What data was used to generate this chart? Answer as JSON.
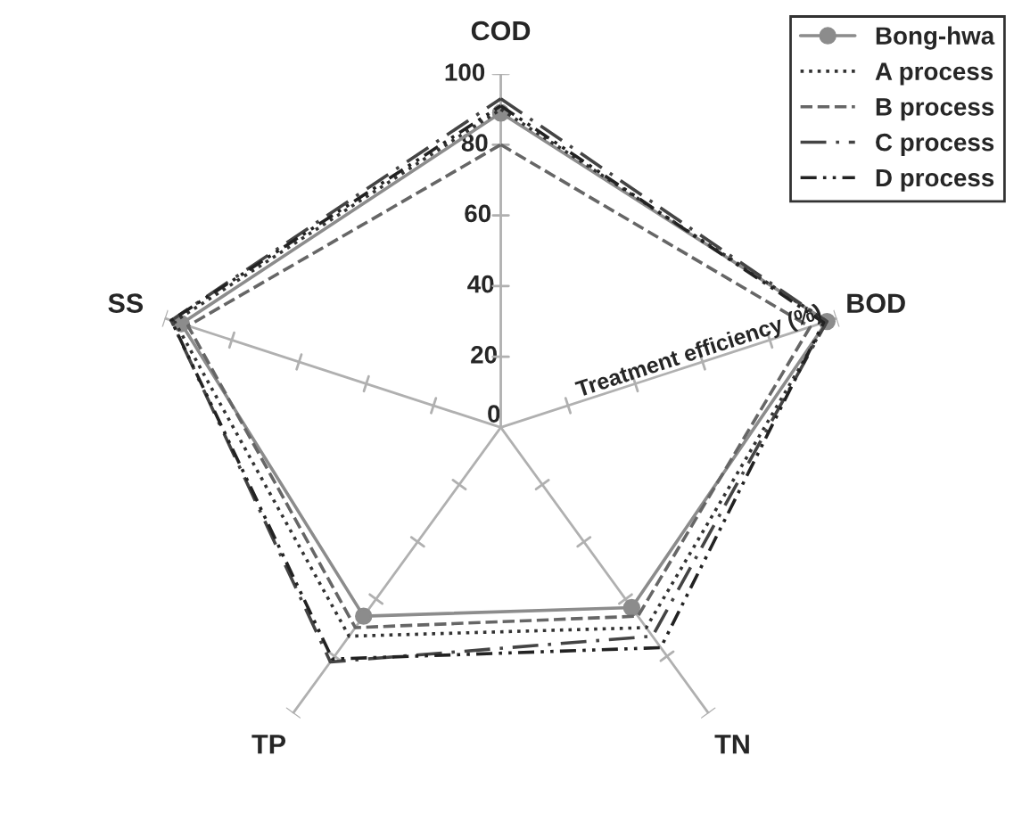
{
  "chart_data": {
    "type": "radar",
    "ylabel": "Treatment efficiency (%)",
    "categories": [
      "COD",
      "BOD",
      "TN",
      "TP",
      "SS"
    ],
    "ylim": [
      0,
      100
    ],
    "yticks": [
      0,
      20,
      40,
      60,
      80,
      100
    ],
    "grid": false,
    "legend": "top right",
    "series": [
      {
        "name": "Bong-hwa",
        "color": "#8c8c8c",
        "values": [
          89,
          97,
          63,
          66,
          95
        ],
        "line_style": "solid",
        "marker": "circle"
      },
      {
        "name": "A process",
        "color": "#333333",
        "values": [
          90,
          97,
          70,
          73,
          97
        ],
        "line_style": "dotted",
        "marker": "none"
      },
      {
        "name": "B process",
        "color": "#666666",
        "values": [
          80,
          92,
          66,
          70,
          93
        ],
        "line_style": "dashed",
        "marker": "none"
      },
      {
        "name": "C process",
        "color": "#444444",
        "values": [
          93,
          97,
          73,
          82,
          98
        ],
        "line_style": "dashdot",
        "marker": "none"
      },
      {
        "name": "D process",
        "color": "#222222",
        "values": [
          91,
          96,
          77,
          81,
          98
        ],
        "line_style": "dashdotdot",
        "marker": "none"
      }
    ]
  }
}
